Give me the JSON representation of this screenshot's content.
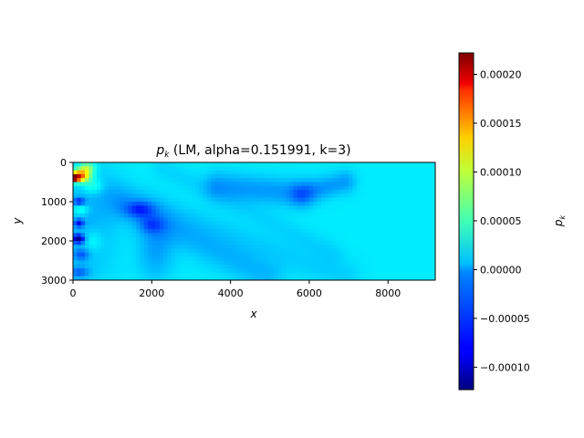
{
  "chart_data": {
    "type": "heatmap",
    "title_var": "p",
    "title_sub": "k",
    "title_rest": " (LM, alpha=0.151991, k=3)",
    "xlabel": "x",
    "ylabel": "y",
    "xlim": [
      0,
      9200
    ],
    "ylim": [
      3000,
      0
    ],
    "xticks": [
      0,
      2000,
      4000,
      6000,
      8000
    ],
    "yticks": [
      0,
      1000,
      2000,
      3000
    ],
    "colorbar": {
      "label_var": "p",
      "label_sub": "k",
      "range": [
        -0.000123,
        0.000222
      ],
      "ticks": [
        -0.0001,
        -5e-05,
        0.0,
        5e-05,
        0.0001,
        0.00015,
        0.0002
      ],
      "tick_labels": [
        "−0.00010",
        "−0.00005",
        "0.00000",
        "0.00005",
        "0.00010",
        "0.00015",
        "0.00020"
      ],
      "colormap": "jet"
    },
    "background_value": 0.0,
    "field_features": [
      {
        "kind": "band",
        "x0": 3700,
        "y0": 600,
        "x1": 5800,
        "y1": 800,
        "width": 250,
        "value": -2.8e-05
      },
      {
        "kind": "band",
        "x0": 5800,
        "y0": 800,
        "x1": 6900,
        "y1": 500,
        "width": 200,
        "value": -2.8e-05
      },
      {
        "kind": "band",
        "x0": 1000,
        "y0": 800,
        "x1": 6900,
        "y1": 2900,
        "width": 300,
        "value": -1e-05
      },
      {
        "kind": "band",
        "x0": 1300,
        "y0": 1100,
        "x1": 4900,
        "y1": 2900,
        "width": 300,
        "value": -1.8e-05
      },
      {
        "kind": "band",
        "x0": 2300,
        "y0": 150,
        "x1": 6600,
        "y1": 2300,
        "width": 200,
        "value": -8e-06
      },
      {
        "kind": "blob",
        "cx": 400,
        "cy": 1500,
        "rx": 700,
        "ry": 1500,
        "value": -2e-05
      },
      {
        "kind": "blob",
        "cx": 2100,
        "cy": 2200,
        "rx": 450,
        "ry": 800,
        "value": -2.5e-05
      },
      {
        "kind": "blob",
        "cx": 1700,
        "cy": 1200,
        "rx": 350,
        "ry": 200,
        "value": -4.5e-05
      },
      {
        "kind": "blob",
        "cx": 2000,
        "cy": 1600,
        "rx": 300,
        "ry": 200,
        "value": -3e-05
      },
      {
        "kind": "blob",
        "cx": 150,
        "cy": 350,
        "rx": 250,
        "ry": 150,
        "value": 0.00017
      },
      {
        "kind": "blob",
        "cx": 50,
        "cy": 400,
        "rx": 90,
        "ry": 70,
        "value": 0.00021
      },
      {
        "kind": "blob",
        "cx": 350,
        "cy": 150,
        "rx": 200,
        "ry": 150,
        "value": 7e-05
      },
      {
        "kind": "blob",
        "cx": 500,
        "cy": 600,
        "rx": 250,
        "ry": 200,
        "value": 3e-05
      },
      {
        "kind": "blob",
        "cx": 200,
        "cy": 1200,
        "rx": 200,
        "ry": 150,
        "value": 3e-05
      },
      {
        "kind": "blob",
        "cx": 150,
        "cy": 1000,
        "rx": 150,
        "ry": 100,
        "value": -6e-05
      },
      {
        "kind": "blob",
        "cx": 150,
        "cy": 1550,
        "rx": 120,
        "ry": 100,
        "value": -7e-05
      },
      {
        "kind": "blob",
        "cx": 130,
        "cy": 1950,
        "rx": 150,
        "ry": 110,
        "value": -0.00011
      },
      {
        "kind": "blob",
        "cx": 200,
        "cy": 2350,
        "rx": 200,
        "ry": 150,
        "value": -4e-05
      },
      {
        "kind": "blob",
        "cx": 500,
        "cy": 2000,
        "rx": 250,
        "ry": 300,
        "value": 2e-05
      },
      {
        "kind": "blob",
        "cx": 150,
        "cy": 2800,
        "rx": 250,
        "ry": 150,
        "value": -4e-05
      }
    ]
  }
}
